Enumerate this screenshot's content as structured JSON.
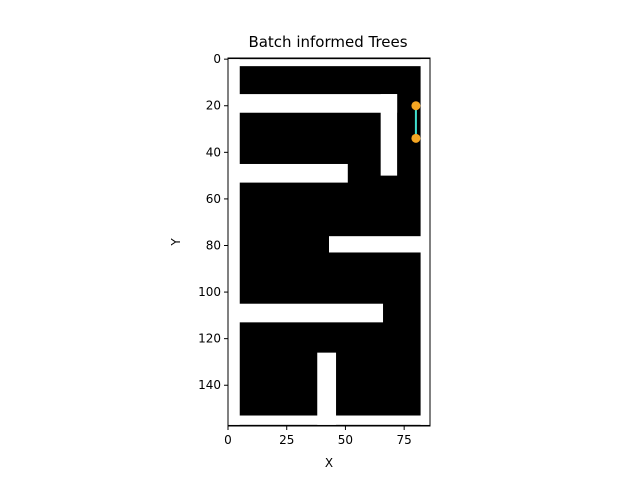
{
  "chart_data": {
    "type": "scatter",
    "title": "Batch informed Trees",
    "xlabel": "X",
    "ylabel": "Y",
    "xlim": [
      0,
      86
    ],
    "ylim": [
      157.5,
      -0.5
    ],
    "x_ticks": [
      0,
      25,
      50,
      75
    ],
    "y_ticks": [
      0,
      20,
      40,
      60,
      80,
      100,
      120,
      140
    ],
    "grid": false,
    "background": "occupancy grid map (black = obstacle, white = free space)",
    "colors": {
      "obstacle": "#000000",
      "free": "#ffffff",
      "path": "#40e0d0",
      "node": "#f5a623"
    },
    "free_regions": [
      {
        "x0": 0,
        "x1": 5,
        "y0": 0,
        "y1": 157
      },
      {
        "x0": 82,
        "x1": 86,
        "y0": 0,
        "y1": 157
      },
      {
        "x0": 0,
        "x1": 86,
        "y0": 0,
        "y1": 3
      },
      {
        "x0": 0,
        "x1": 86,
        "y0": 153,
        "y1": 157
      },
      {
        "x0": 4,
        "x1": 72,
        "y0": 15,
        "y1": 23
      },
      {
        "x0": 65,
        "x1": 72,
        "y0": 15,
        "y1": 50
      },
      {
        "x0": 4,
        "x1": 51,
        "y0": 45,
        "y1": 53
      },
      {
        "x0": 43,
        "x1": 86,
        "y0": 76,
        "y1": 83
      },
      {
        "x0": 4,
        "x1": 66,
        "y0": 105,
        "y1": 113
      },
      {
        "x0": 38,
        "x1": 46,
        "y0": 126,
        "y1": 157
      }
    ],
    "nodes": [
      {
        "x": 80,
        "y": 20
      },
      {
        "x": 80,
        "y": 34
      }
    ],
    "edges": [
      {
        "from": [
          80,
          20
        ],
        "to": [
          80,
          34
        ]
      }
    ]
  }
}
